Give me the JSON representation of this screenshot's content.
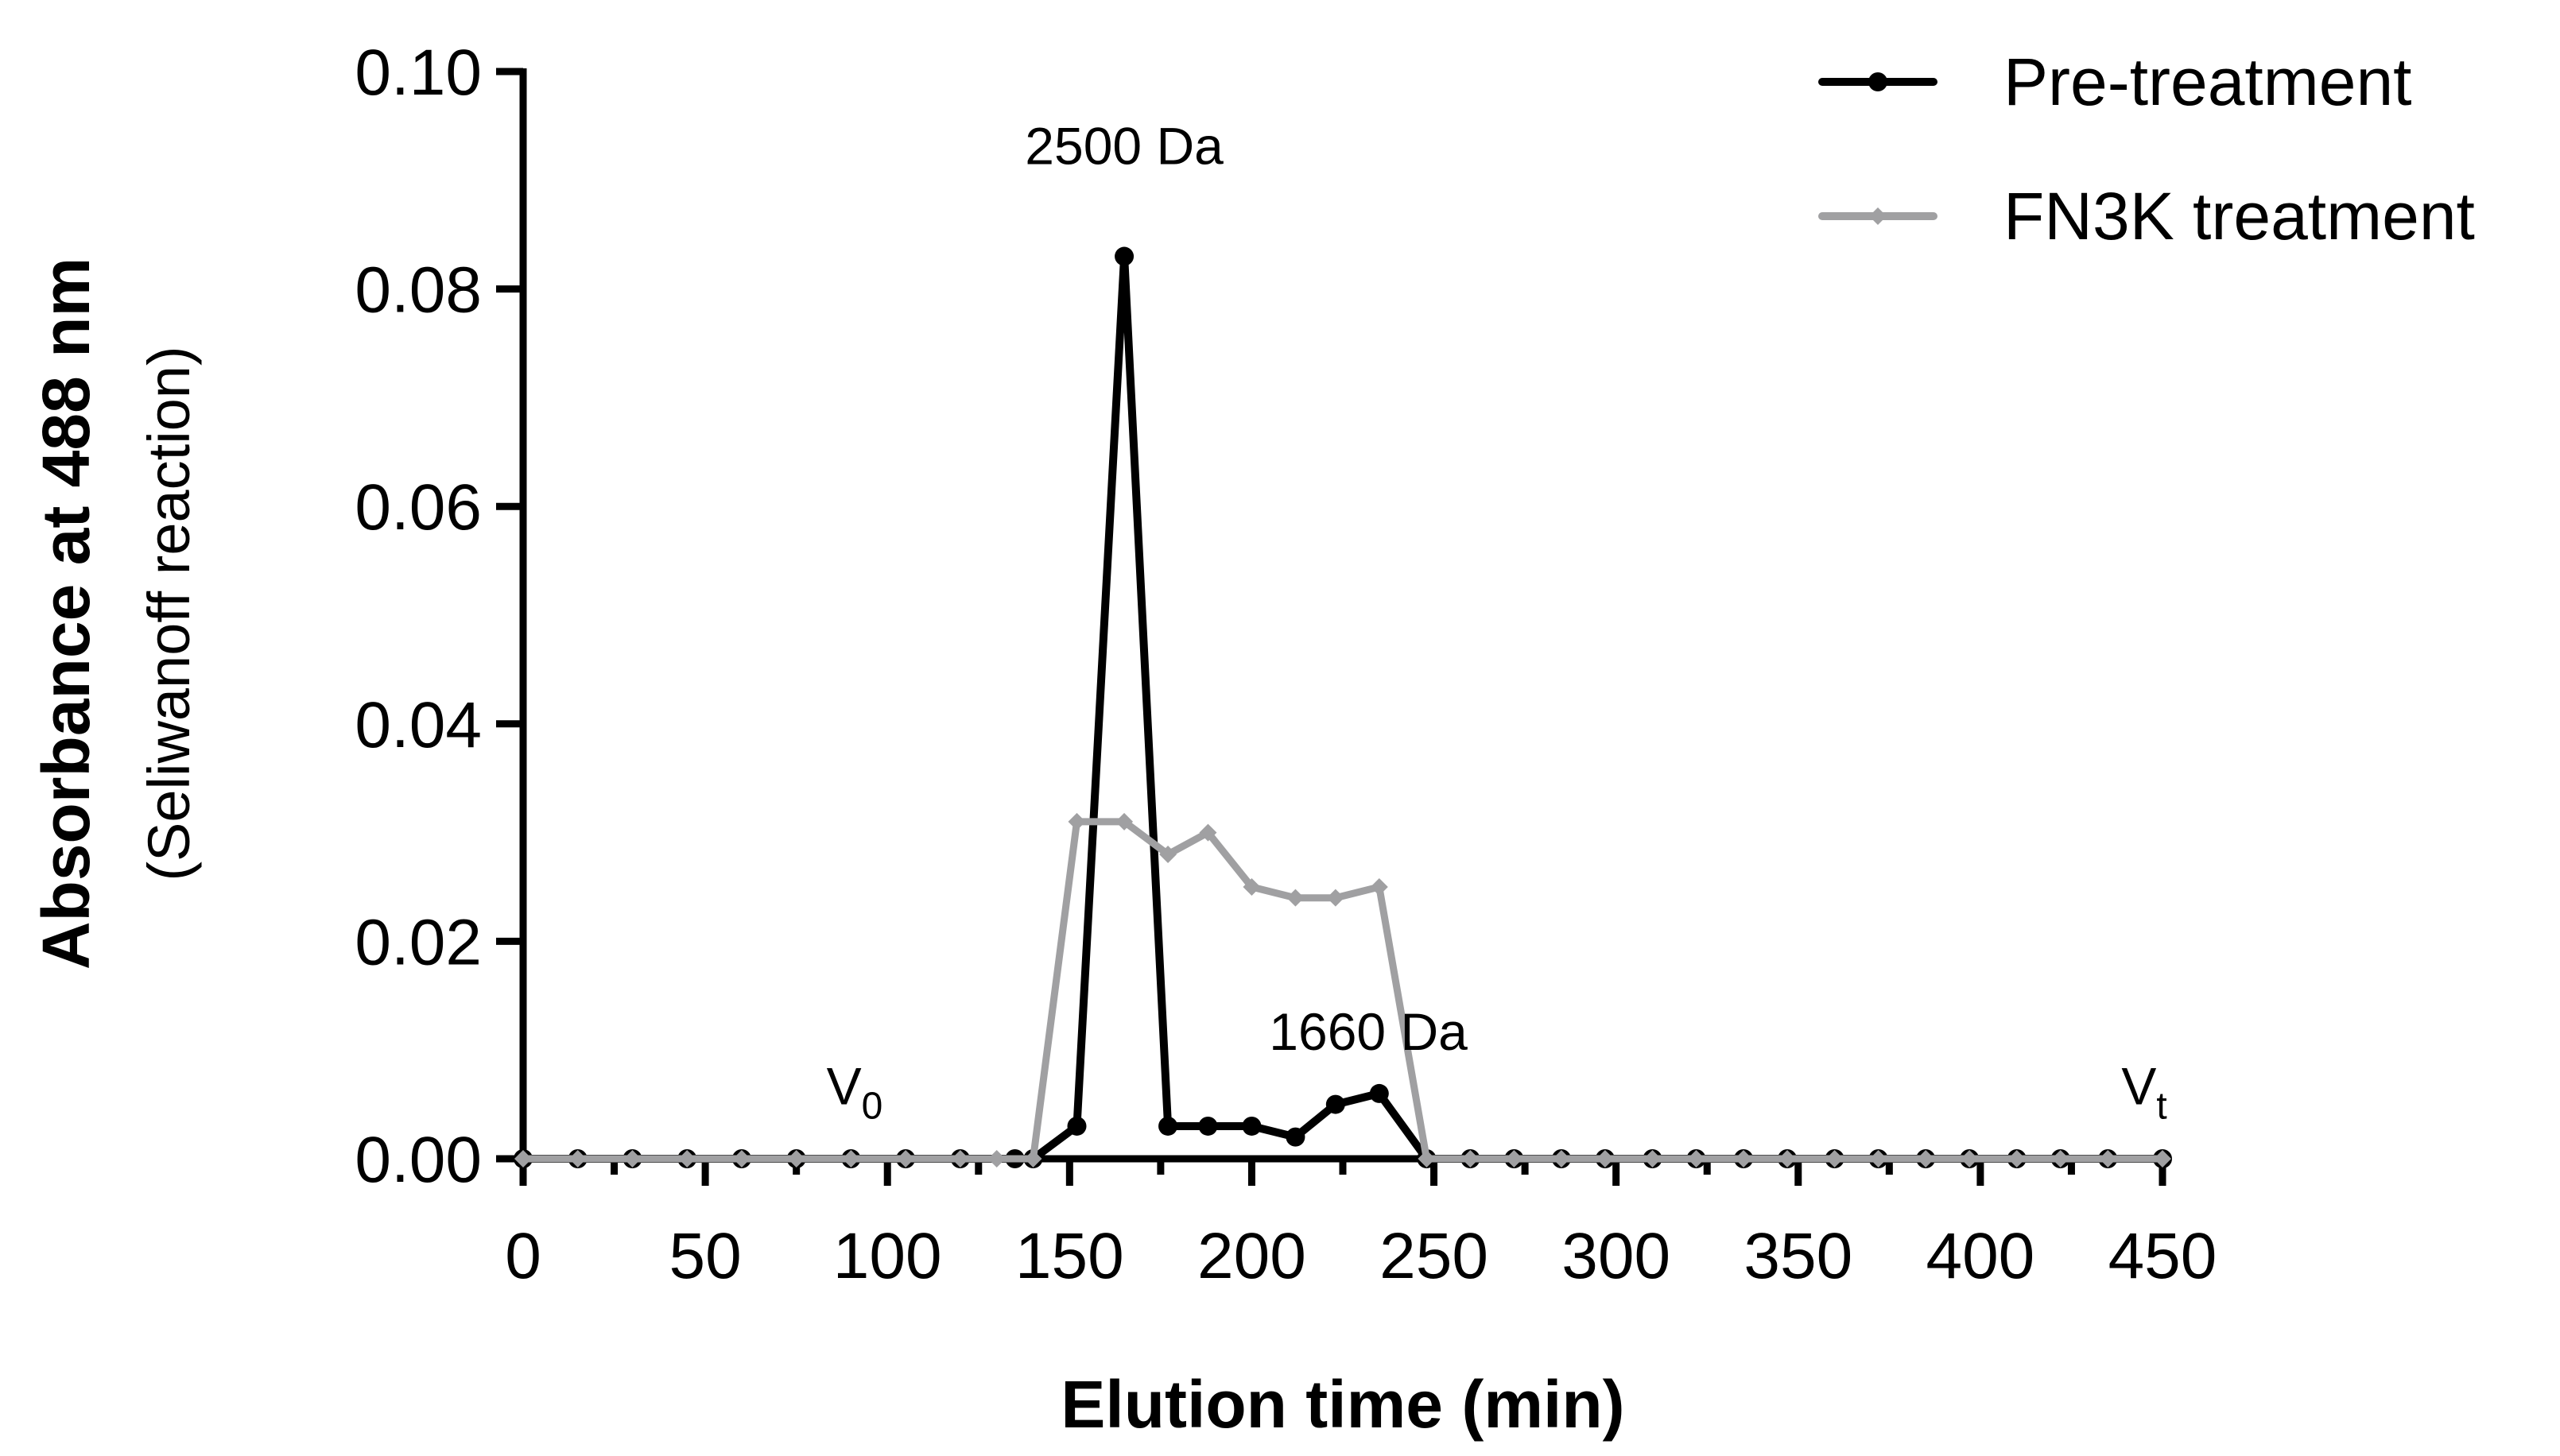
{
  "chart_data": {
    "type": "line",
    "xlabel": "Elution time (min)",
    "ylabel": "Absorbance at 488 nm",
    "ylabel_sub": "(Seliwanoff reaction)",
    "xlim": [
      0,
      450
    ],
    "ylim": [
      0,
      0.1
    ],
    "x_ticks": [
      0,
      50,
      100,
      150,
      200,
      250,
      300,
      350,
      400,
      450
    ],
    "x_tick_labels": [
      "0",
      "50",
      "100",
      "150",
      "200",
      "250",
      "300",
      "350",
      "400",
      "450"
    ],
    "y_ticks": [
      0,
      0.02,
      0.04,
      0.06,
      0.08,
      0.1
    ],
    "y_tick_labels": [
      "0.00",
      "0.02",
      "0.04",
      "0.06",
      "0.08",
      "0.10"
    ],
    "grid": false,
    "legend_position": "top-right",
    "series": [
      {
        "name": "Pre-treatment",
        "color": "#000000",
        "x": [
          0,
          15,
          30,
          45,
          60,
          75,
          90,
          105,
          120,
          135,
          140,
          152,
          165,
          177,
          188,
          200,
          212,
          223,
          235,
          248,
          260,
          272,
          285,
          297,
          310,
          322,
          335,
          347,
          360,
          372,
          385,
          397,
          410,
          422,
          435,
          450
        ],
        "y": [
          0,
          0,
          0,
          0,
          0,
          0,
          0,
          0,
          0,
          0,
          0,
          0.003,
          0.083,
          0.003,
          0.003,
          0.003,
          0.002,
          0.005,
          0.006,
          0,
          0,
          0,
          0,
          0,
          0,
          0,
          0,
          0,
          0,
          0,
          0,
          0,
          0,
          0,
          0,
          0
        ]
      },
      {
        "name": "FN3K treatment",
        "color": "#a0a0a2",
        "x": [
          0,
          15,
          30,
          45,
          60,
          75,
          90,
          105,
          120,
          130,
          140,
          152,
          165,
          177,
          188,
          200,
          212,
          223,
          235,
          248,
          260,
          272,
          285,
          297,
          310,
          322,
          335,
          347,
          360,
          372,
          385,
          397,
          410,
          422,
          435,
          450
        ],
        "y": [
          0,
          0,
          0,
          0,
          0,
          0,
          0,
          0,
          0,
          0,
          0,
          0.031,
          0.031,
          0.028,
          0.03,
          0.025,
          0.024,
          0.024,
          0.025,
          0,
          0,
          0,
          0,
          0,
          0,
          0,
          0,
          0,
          0,
          0,
          0,
          0,
          0,
          0,
          0,
          0
        ]
      }
    ],
    "annotations": [
      {
        "label": "2500 Da",
        "x": 165,
        "y": 0.0915
      },
      {
        "label": "1660 Da",
        "x": 232,
        "y": 0.01
      }
    ],
    "markers": [
      {
        "label": "V",
        "sub": "0",
        "x": 91,
        "y": 0.005
      },
      {
        "label": "V",
        "sub": "t",
        "x": 445,
        "y": 0.005
      }
    ]
  }
}
